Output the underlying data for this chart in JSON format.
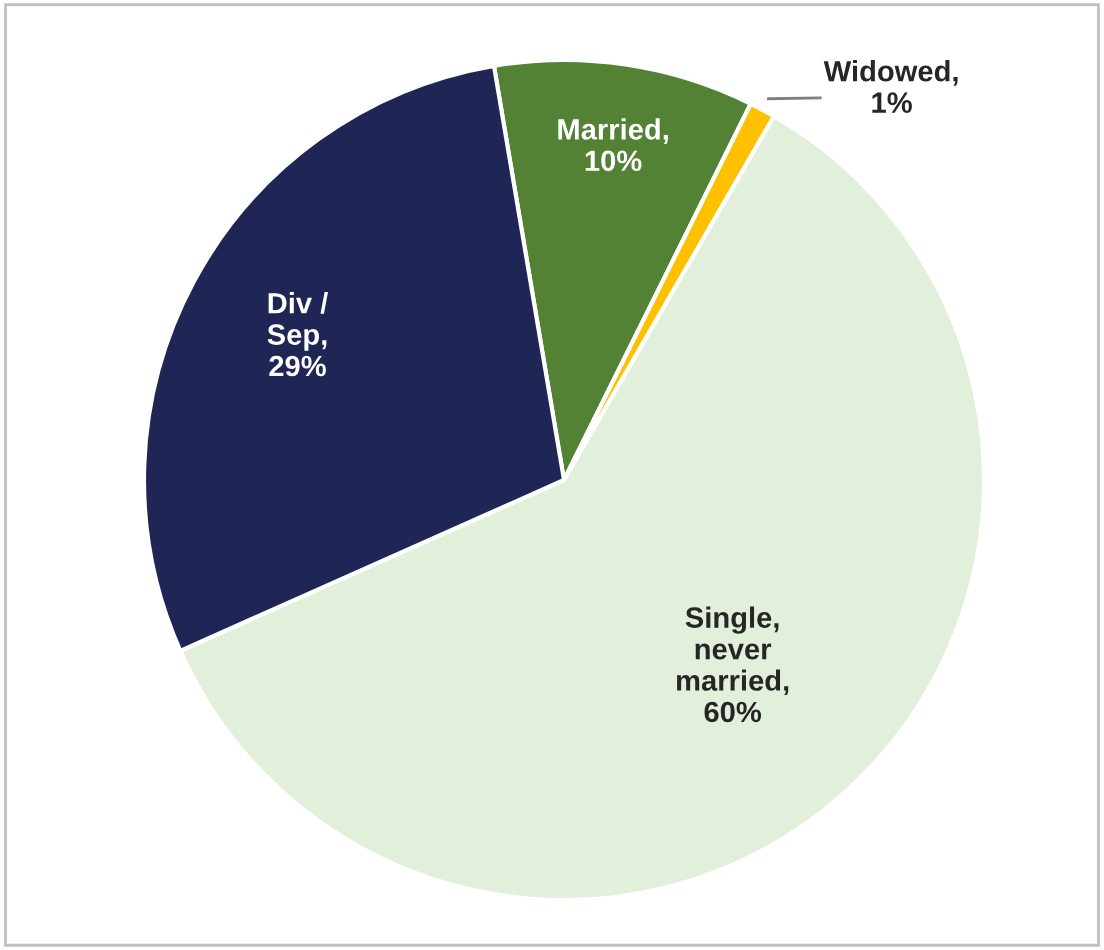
{
  "chart_data": {
    "type": "pie",
    "categories": [
      "Married",
      "Widowed",
      "Single, never married",
      "Div / Sep"
    ],
    "value_labels": [
      ",\n10%",
      ",\n1%",
      ",\n60%",
      ",\n29%"
    ],
    "values": [
      10,
      1,
      60,
      29
    ],
    "colors": [
      "#548235",
      "#ffc000",
      "#e2efda",
      "#1f2656"
    ],
    "legend": false
  }
}
